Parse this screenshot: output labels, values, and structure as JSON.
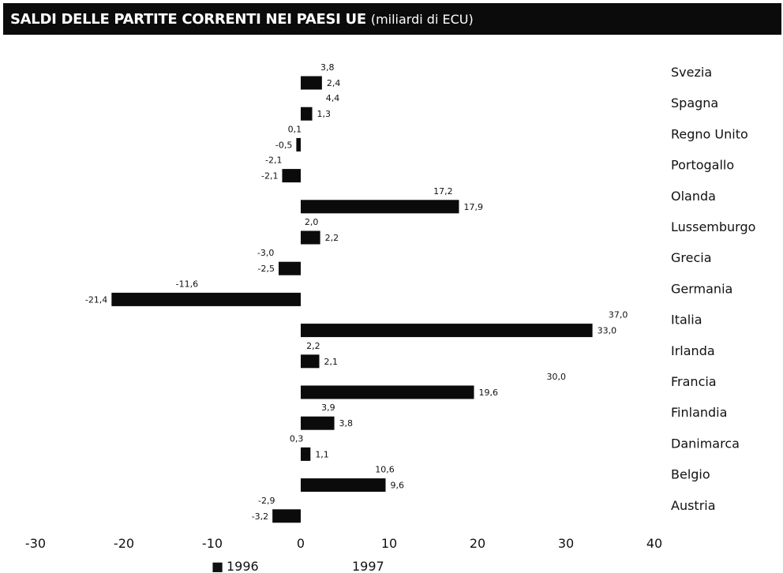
{
  "chart_data": {
    "type": "bar",
    "orientation": "horizontal",
    "title": "SALDI DELLE PARTITE CORRENTI NEI PAESI UE",
    "subtitle": "(miliardi di ECU)",
    "categories": [
      "Svezia",
      "Spagna",
      "Regno Unito",
      "Portogallo",
      "Olanda",
      "Lussemburgo",
      "Grecia",
      "Germania",
      "Italia",
      "Irlanda",
      "Francia",
      "Finlandia",
      "Danimarca",
      "Belgio",
      "Austria"
    ],
    "series": [
      {
        "name": "1996",
        "values": [
          2.4,
          1.3,
          -0.5,
          -2.1,
          17.9,
          2.2,
          -2.5,
          -21.4,
          33.0,
          2.1,
          19.6,
          3.8,
          1.1,
          9.6,
          -3.2
        ],
        "labels": [
          "2,4",
          "1,3",
          "-0,5",
          "-2,1",
          "17,9",
          "2,2",
          "-2,5",
          "-21,4",
          "33,0",
          "2,1",
          "19,6",
          "3,8",
          "1,1",
          "9,6",
          "-3,2"
        ],
        "color": "#0b0b0b"
      },
      {
        "name": "1997",
        "values": [
          3.8,
          4.4,
          0.1,
          -2.1,
          17.2,
          2.0,
          -3.0,
          -11.6,
          37.0,
          2.2,
          30.0,
          3.9,
          0.3,
          10.6,
          -2.9
        ],
        "labels": [
          "3,8",
          "4,4",
          "0,1",
          "-2,1",
          "17,2",
          "2,0",
          "-3,0",
          "-11,6",
          "37,0",
          "2,2",
          "30,0",
          "3,9",
          "0,3",
          "10,6",
          "-2,9"
        ],
        "color": "#ffffff"
      }
    ],
    "xlim": [
      -30,
      40
    ],
    "xticks": [
      -30,
      -20,
      -10,
      0,
      10,
      20,
      30,
      40
    ],
    "xtick_labels": [
      "-30",
      "-20",
      "-10",
      "0",
      "10",
      "20",
      "30",
      "40"
    ],
    "grid": false,
    "legend_position": "bottom-center",
    "legend": [
      {
        "label": "1996",
        "marker": "■"
      },
      {
        "label": "1997",
        "marker": ""
      }
    ]
  }
}
